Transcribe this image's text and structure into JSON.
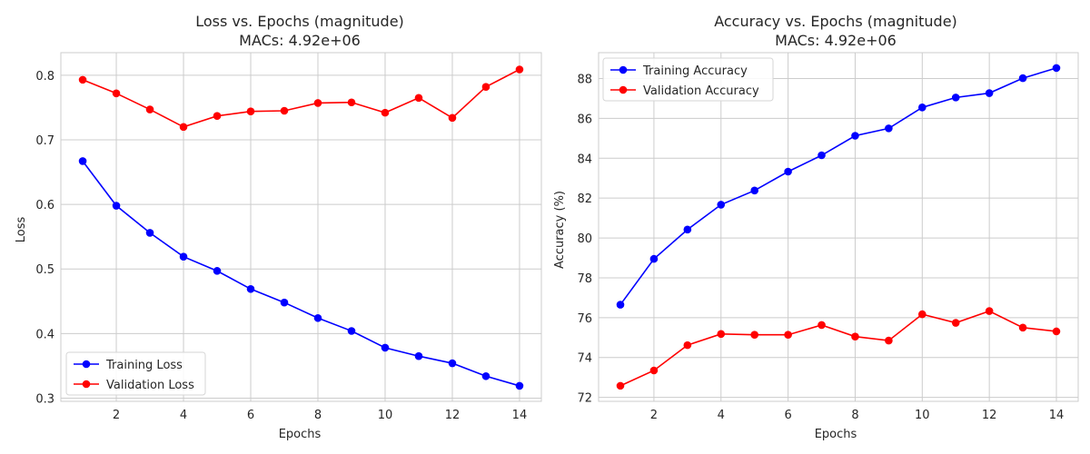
{
  "colors": {
    "training": "#0000ff",
    "validation": "#ff0000",
    "grid": "#cccccc",
    "spine": "#cccccc"
  },
  "chart_data": [
    {
      "type": "line",
      "title": "Loss vs. Epochs (magnitude)",
      "subtitle": "MACs: 4.92e+06",
      "xlabel": "Epochs",
      "ylabel": "Loss",
      "xlim": [
        0.35,
        14.65
      ],
      "ylim": [
        0.295,
        0.835
      ],
      "x": [
        1,
        2,
        3,
        4,
        5,
        6,
        7,
        8,
        9,
        10,
        11,
        12,
        13,
        14
      ],
      "xticks": [
        2,
        4,
        6,
        8,
        10,
        12,
        14
      ],
      "xtick_labels": [
        "2",
        "4",
        "6",
        "8",
        "10",
        "12",
        "14"
      ],
      "yticks": [
        0.3,
        0.4,
        0.5,
        0.6,
        0.7,
        0.8
      ],
      "ytick_labels": [
        "0.3",
        "0.4",
        "0.5",
        "0.6",
        "0.7",
        "0.8"
      ],
      "grid": true,
      "legend_position": "lower-left",
      "series": [
        {
          "name": "Training Loss",
          "color": "#0000ff",
          "values": [
            0.667,
            0.598,
            0.556,
            0.519,
            0.497,
            0.469,
            0.448,
            0.424,
            0.404,
            0.378,
            0.365,
            0.354,
            0.334,
            0.319
          ]
        },
        {
          "name": "Validation Loss",
          "color": "#ff0000",
          "values": [
            0.793,
            0.772,
            0.747,
            0.72,
            0.737,
            0.744,
            0.745,
            0.757,
            0.758,
            0.742,
            0.765,
            0.734,
            0.782,
            0.809
          ]
        }
      ]
    },
    {
      "type": "line",
      "title": "Accuracy vs. Epochs (magnitude)",
      "subtitle": "MACs: 4.92e+06",
      "xlabel": "Epochs",
      "ylabel": "Accuracy (%)",
      "xlim": [
        0.35,
        14.65
      ],
      "ylim": [
        71.8,
        89.3
      ],
      "x": [
        1,
        2,
        3,
        4,
        5,
        6,
        7,
        8,
        9,
        10,
        11,
        12,
        13,
        14
      ],
      "xticks": [
        2,
        4,
        6,
        8,
        10,
        12,
        14
      ],
      "xtick_labels": [
        "2",
        "4",
        "6",
        "8",
        "10",
        "12",
        "14"
      ],
      "yticks": [
        72,
        74,
        76,
        78,
        80,
        82,
        84,
        86,
        88
      ],
      "ytick_labels": [
        "72",
        "74",
        "76",
        "78",
        "80",
        "82",
        "84",
        "86",
        "88"
      ],
      "grid": true,
      "legend_position": "upper-left",
      "series": [
        {
          "name": "Training Accuracy",
          "color": "#0000ff",
          "values": [
            76.65,
            78.95,
            80.42,
            81.67,
            82.38,
            83.33,
            84.15,
            85.13,
            85.5,
            86.55,
            87.05,
            87.27,
            88.02,
            88.53
          ]
        },
        {
          "name": "Validation Accuracy",
          "color": "#ff0000",
          "values": [
            72.58,
            73.35,
            74.62,
            75.18,
            75.14,
            75.14,
            75.63,
            75.05,
            74.85,
            76.17,
            75.74,
            76.33,
            75.5,
            75.31
          ]
        }
      ]
    }
  ]
}
